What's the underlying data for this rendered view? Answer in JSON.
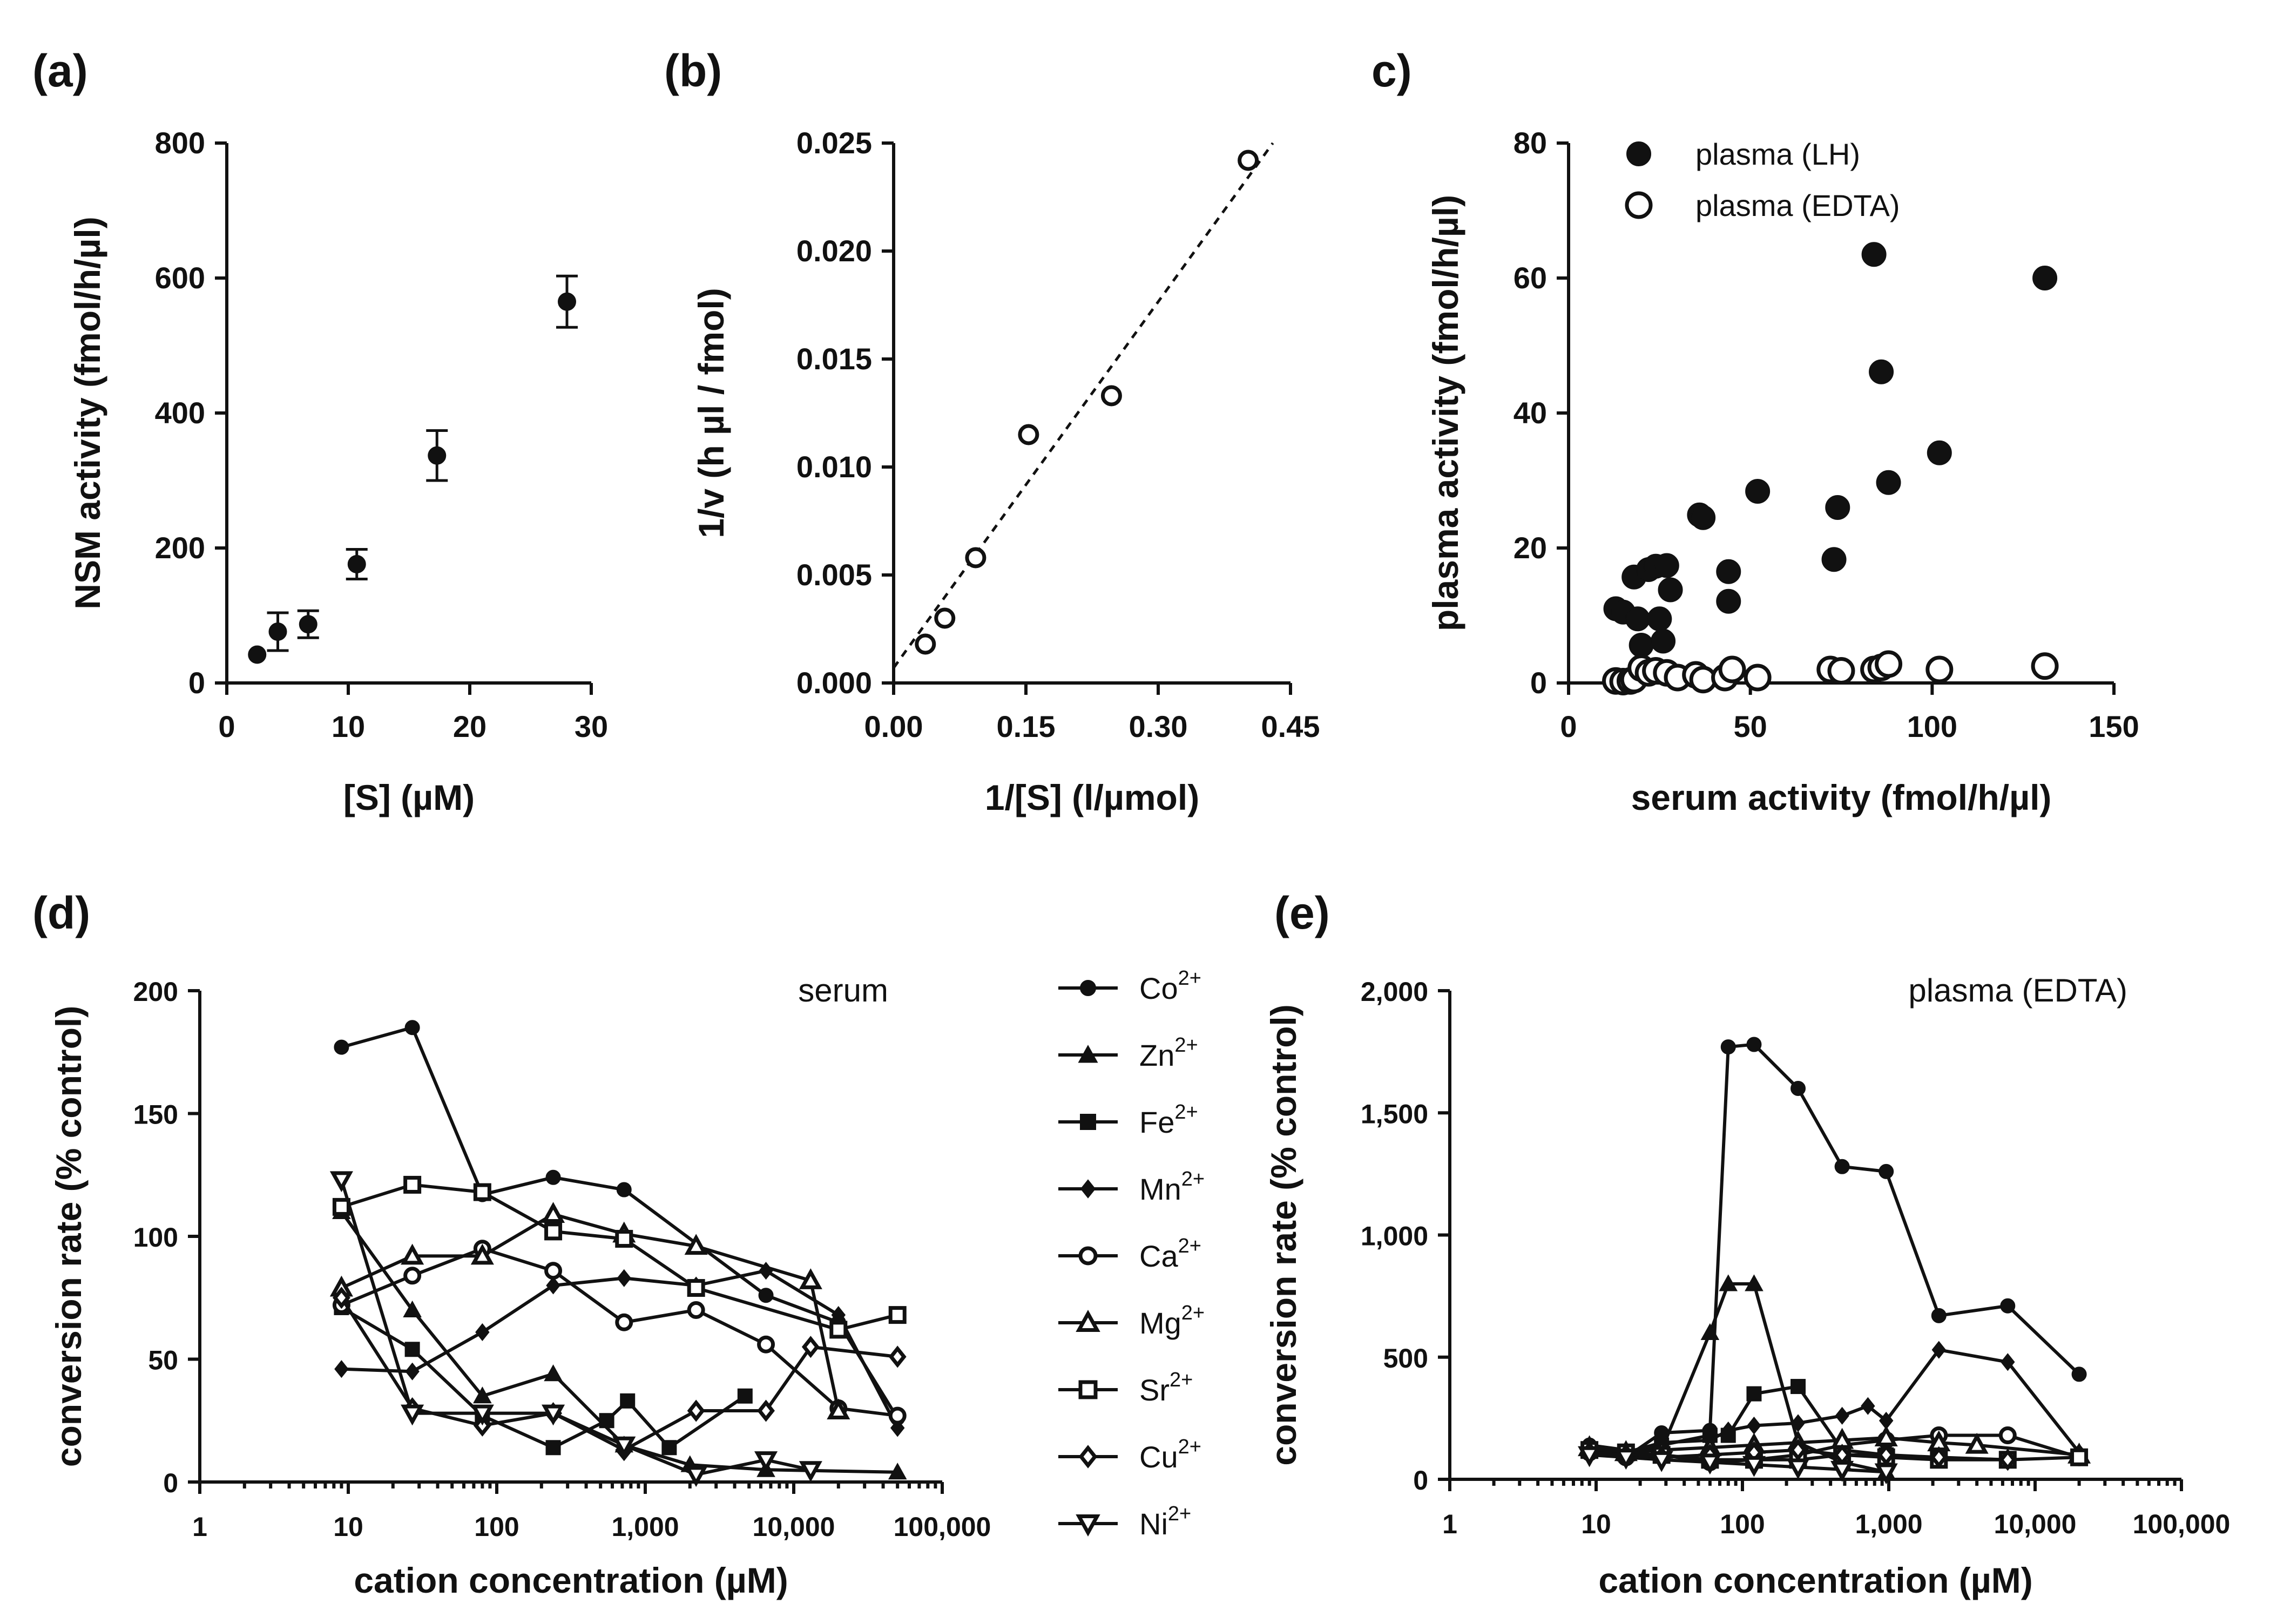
{
  "figure": {
    "panels": [
      {
        "id": "a",
        "label": "(a)"
      },
      {
        "id": "b",
        "label": "(b)"
      },
      {
        "id": "c",
        "label": "c)"
      },
      {
        "id": "d",
        "label": "(d)"
      },
      {
        "id": "e",
        "label": "(e)"
      }
    ]
  },
  "chart_data": [
    {
      "id": "a",
      "type": "scatter",
      "title": "",
      "xlabel": "[S] (µM)",
      "ylabel": "NSM activity (fmol/h/µl)",
      "xlim": [
        0,
        30
      ],
      "ylim": [
        0,
        800
      ],
      "xticks": [
        0,
        10,
        20,
        30
      ],
      "yticks": [
        0,
        200,
        400,
        600,
        800
      ],
      "xtick_labels": [
        "0",
        "10",
        "20",
        "30"
      ],
      "ytick_labels": [
        "0",
        "200",
        "400",
        "600",
        "800"
      ],
      "marker": "filled-circle",
      "x": [
        2.5,
        4.2,
        6.7,
        10.7,
        17.3,
        28.0
      ],
      "y": [
        42,
        76,
        87,
        176,
        337,
        565
      ],
      "err": [
        0,
        28,
        20,
        22,
        37,
        38
      ]
    },
    {
      "id": "b",
      "type": "scatter",
      "title": "",
      "xlabel": "1/[S] (l/µmol)",
      "ylabel": "1/v (h µl / fmol)",
      "xlim": [
        0,
        0.45
      ],
      "ylim": [
        0,
        0.025
      ],
      "xticks": [
        0,
        0.15,
        0.3,
        0.45
      ],
      "yticks": [
        0,
        0.005,
        0.01,
        0.015,
        0.02,
        0.025
      ],
      "xtick_labels": [
        "0.00",
        "0.15",
        "0.30",
        "0.45"
      ],
      "ytick_labels": [
        "0.000",
        "0.005",
        "0.010",
        "0.015",
        "0.020",
        "0.025"
      ],
      "marker": "open-circle",
      "x": [
        0.036,
        0.058,
        0.093,
        0.153,
        0.247,
        0.402
      ],
      "y": [
        0.0018,
        0.003,
        0.0058,
        0.0115,
        0.0133,
        0.0242
      ],
      "fit_line": {
        "style": "dashed",
        "x": [
          0,
          0.43
        ],
        "y": [
          0.0007,
          0.025
        ]
      }
    },
    {
      "id": "c",
      "type": "scatter",
      "title": "",
      "xlabel": "serum activity (fmol/h/µl)",
      "ylabel": "plasma activity (fmol/h/µl)",
      "xlim": [
        0,
        150
      ],
      "ylim": [
        0,
        80
      ],
      "xticks": [
        0,
        50,
        100,
        150
      ],
      "yticks": [
        0,
        20,
        40,
        60,
        80
      ],
      "xtick_labels": [
        "0",
        "50",
        "100",
        "150"
      ],
      "ytick_labels": [
        "0",
        "20",
        "40",
        "60",
        "80"
      ],
      "legend": {
        "position": "top-left"
      },
      "series": [
        {
          "name": "plasma (LH)",
          "marker": "filled-circle",
          "x": [
            13,
            15,
            18,
            19,
            20,
            22,
            24,
            25,
            26,
            27,
            28,
            36,
            37,
            44,
            44,
            52,
            73,
            74,
            84,
            86,
            88,
            102,
            131
          ],
          "y": [
            11,
            10.5,
            15.7,
            9.5,
            5.6,
            16.8,
            17.3,
            9.5,
            6.2,
            17.4,
            13.8,
            24.9,
            24.5,
            16.5,
            12.1,
            28.4,
            18.3,
            26,
            63.5,
            46.1,
            29.7,
            34.1,
            60
          ]
        },
        {
          "name": "plasma (EDTA)",
          "marker": "open-circle",
          "x": [
            13,
            15,
            17,
            18,
            20,
            22,
            24,
            27,
            30,
            35,
            37,
            43,
            45,
            52,
            72,
            75,
            84,
            86,
            88,
            102,
            131
          ],
          "y": [
            0.3,
            0.2,
            0.3,
            0.5,
            2.2,
            1.5,
            1.8,
            1.5,
            0.8,
            1.2,
            0.5,
            0.8,
            2.0,
            0.8,
            2.0,
            1.8,
            2.0,
            2.3,
            2.8,
            2.0,
            2.5
          ]
        }
      ]
    },
    {
      "id": "d",
      "type": "line",
      "title": "",
      "annotation": "serum",
      "xscale": "log",
      "xlabel": "cation concentration (µM)",
      "ylabel": "conversion rate (% control)",
      "xlim": [
        1,
        100000
      ],
      "ylim": [
        0,
        200
      ],
      "xticks": [
        1,
        10,
        100,
        1000,
        10000,
        100000
      ],
      "yticks": [
        0,
        50,
        100,
        150,
        200
      ],
      "xtick_labels": [
        "1",
        "10",
        "100",
        "1,000",
        "10,000",
        "100,000"
      ],
      "ytick_labels": [
        "0",
        "50",
        "100",
        "150",
        "200"
      ],
      "legend": {
        "position": "right"
      },
      "series": [
        {
          "name": "Co",
          "ion_sup": "2+",
          "marker": "filled-circle",
          "x": [
            9,
            27,
            80,
            240,
            720,
            6500,
            20000,
            50000
          ],
          "y": [
            177,
            185,
            117,
            124,
            119,
            76,
            65,
            26
          ]
        },
        {
          "name": "Zn",
          "ion_sup": "2+",
          "marker": "filled-triangle",
          "x": [
            9,
            27,
            80,
            240,
            720,
            2000,
            6500,
            50000
          ],
          "y": [
            110,
            70,
            35,
            44,
            15,
            7,
            5,
            4
          ]
        },
        {
          "name": "Fe",
          "ion_sup": "2+",
          "marker": "filled-square",
          "x": [
            9,
            27,
            80,
            240,
            550,
            760,
            1450,
            4700
          ],
          "y": [
            71,
            54,
            27,
            14,
            25,
            33,
            14,
            35
          ]
        },
        {
          "name": "Mn",
          "ion_sup": "2+",
          "marker": "filled-diamond",
          "x": [
            9,
            27,
            80,
            240,
            720,
            2200,
            6500,
            20000,
            50000
          ],
          "y": [
            46,
            45,
            61,
            80,
            83,
            80,
            86,
            68,
            22
          ]
        },
        {
          "name": "Ca",
          "ion_sup": "2+",
          "marker": "open-circle",
          "x": [
            9,
            27,
            80,
            240,
            720,
            2200,
            6500,
            20000,
            50000
          ],
          "y": [
            72,
            84,
            95,
            86,
            65,
            70,
            56,
            30,
            27
          ]
        },
        {
          "name": "Mg",
          "ion_sup": "2+",
          "marker": "open-triangle",
          "x": [
            9,
            27,
            80,
            240,
            720,
            2200,
            13000,
            20000
          ],
          "y": [
            79,
            92,
            92,
            109,
            101,
            96,
            82,
            29
          ]
        },
        {
          "name": "Sr",
          "ion_sup": "2+",
          "marker": "open-square",
          "x": [
            9,
            27,
            80,
            240,
            720,
            2200,
            20000,
            50000
          ],
          "y": [
            112,
            121,
            118,
            102,
            99,
            79,
            62,
            68
          ]
        },
        {
          "name": "Cu",
          "ion_sup": "2+",
          "marker": "open-diamond",
          "x": [
            9,
            27,
            80,
            240,
            720,
            2200,
            6500,
            13000,
            50000
          ],
          "y": [
            75,
            30,
            23,
            28,
            13,
            29,
            29,
            55,
            51
          ]
        },
        {
          "name": "Ni",
          "ion_sup": "2+",
          "marker": "open-triangle-down",
          "x": [
            9,
            27,
            80,
            240,
            720,
            2200,
            6500,
            13000
          ],
          "y": [
            123,
            28,
            28,
            28,
            15,
            3,
            9,
            5
          ]
        }
      ]
    },
    {
      "id": "e",
      "type": "line",
      "title": "",
      "annotation": "plasma (EDTA)",
      "xscale": "log",
      "xlabel": "cation concentration (µM)",
      "ylabel": "conversion rate (% control)",
      "xlim": [
        1,
        100000
      ],
      "ylim": [
        0,
        2000
      ],
      "xticks": [
        1,
        10,
        100,
        1000,
        10000,
        100000
      ],
      "yticks": [
        0,
        500,
        1000,
        1500,
        2000
      ],
      "xtick_labels": [
        "1",
        "10",
        "100",
        "1,000",
        "10,000",
        "100,000"
      ],
      "ytick_labels": [
        "0",
        "500",
        "1,000",
        "1,500",
        "2,000"
      ],
      "series": [
        {
          "name": "Co",
          "marker": "filled-circle",
          "x": [
            9,
            16,
            28,
            60,
            80,
            120,
            240,
            480,
            960,
            2200,
            6500,
            20000
          ],
          "y": [
            140,
            90,
            190,
            200,
            1770,
            1780,
            1600,
            1280,
            1260,
            670,
            710,
            430
          ]
        },
        {
          "name": "Zn",
          "marker": "filled-triangle",
          "x": [
            9,
            16,
            28,
            60,
            80,
            120,
            240,
            480,
            960
          ],
          "y": [
            140,
            120,
            120,
            600,
            800,
            800,
            150,
            70,
            30
          ]
        },
        {
          "name": "Fe",
          "marker": "filled-square",
          "x": [
            9,
            16,
            28,
            60,
            80,
            120,
            240,
            480,
            960
          ],
          "y": [
            120,
            100,
            140,
            180,
            180,
            350,
            380,
            120,
            100
          ]
        },
        {
          "name": "Mn",
          "marker": "filled-diamond",
          "x": [
            9,
            16,
            28,
            60,
            80,
            120,
            240,
            480,
            720,
            960,
            2200,
            6500,
            20000
          ],
          "y": [
            120,
            110,
            150,
            160,
            200,
            220,
            230,
            260,
            300,
            240,
            530,
            480,
            110
          ]
        },
        {
          "name": "Ca",
          "marker": "open-circle",
          "x": [
            9,
            16,
            28,
            60,
            120,
            240,
            480,
            960,
            2200,
            6500,
            20000
          ],
          "y": [
            110,
            90,
            100,
            70,
            80,
            100,
            140,
            160,
            180,
            180,
            90
          ]
        },
        {
          "name": "Mg",
          "marker": "open-triangle",
          "x": [
            9,
            16,
            28,
            60,
            120,
            240,
            480,
            960,
            2200,
            4000,
            20000
          ],
          "y": [
            130,
            110,
            120,
            130,
            140,
            150,
            160,
            170,
            150,
            140,
            100
          ]
        },
        {
          "name": "Sr",
          "marker": "open-square",
          "x": [
            9,
            16,
            28,
            60,
            120,
            240,
            480,
            960,
            2200,
            6500,
            20000
          ],
          "y": [
            120,
            110,
            100,
            80,
            80,
            80,
            100,
            90,
            80,
            80,
            90
          ]
        },
        {
          "name": "Cu",
          "marker": "open-diamond",
          "x": [
            9,
            16,
            28,
            60,
            120,
            240,
            480,
            960,
            2200,
            6500
          ],
          "y": [
            110,
            100,
            90,
            100,
            110,
            120,
            100,
            100,
            90,
            80
          ]
        },
        {
          "name": "Ni",
          "marker": "open-triangle-down",
          "x": [
            9,
            16,
            28,
            60,
            120,
            240,
            480,
            960
          ],
          "y": [
            100,
            90,
            80,
            70,
            60,
            50,
            40,
            30
          ]
        }
      ]
    }
  ]
}
